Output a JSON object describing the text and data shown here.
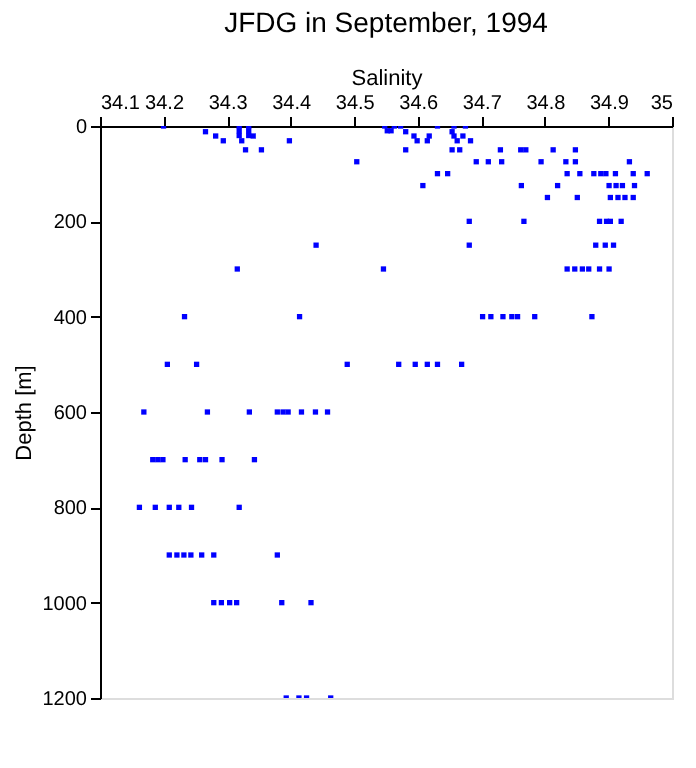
{
  "chart_data": {
    "type": "scatter",
    "title": "JFDG in September, 1994",
    "xlabel": "Salinity",
    "ylabel": "Depth [m]",
    "xlim": [
      34.1,
      35
    ],
    "xticks": [
      34.1,
      34.2,
      34.3,
      34.4,
      34.5,
      34.6,
      34.7,
      34.8,
      34.9,
      35
    ],
    "ylim": [
      1200,
      0
    ],
    "yticks": [
      0,
      200,
      400,
      600,
      800,
      1000,
      1200
    ],
    "grid": false,
    "marker": "square",
    "legend": false,
    "series": [
      {
        "color": "#0000ff",
        "x": [
          34.2,
          34.266,
          34.282,
          34.294,
          34.319,
          34.319,
          34.319,
          34.323,
          34.329,
          34.334,
          34.334,
          34.334,
          34.341,
          34.354,
          34.398,
          34.504,
          34.548,
          34.552,
          34.44,
          34.316,
          34.546,
          34.233,
          34.414,
          34.206,
          34.252,
          34.489,
          34.563,
          34.573,
          34.558,
          34.581,
          34.594,
          34.599,
          34.615,
          34.618,
          34.631,
          34.657,
          34.675,
          34.654,
          34.657,
          34.662,
          34.671,
          34.683,
          34.581,
          34.654,
          34.666,
          34.73,
          34.762,
          34.77,
          34.813,
          34.848,
          34.692,
          34.711,
          34.732,
          34.794,
          34.833,
          34.848,
          34.933,
          34.631,
          34.647,
          34.835,
          34.855,
          34.877,
          34.888,
          34.896,
          34.911,
          34.939,
          34.961,
          34.608,
          34.763,
          34.82,
          34.901,
          34.912,
          34.922,
          34.941,
          34.804,
          34.851,
          34.903,
          34.915,
          34.926,
          34.939,
          34.681,
          34.767,
          34.886,
          34.897,
          34.903,
          34.92,
          34.681,
          34.88,
          34.895,
          34.908,
          34.835,
          34.847,
          34.859,
          34.869,
          34.886,
          34.901,
          34.702,
          34.715,
          34.734,
          34.748,
          34.757,
          34.784,
          34.874,
          34.57,
          34.596,
          34.615,
          34.631,
          34.669,
          34.169,
          34.269,
          34.335,
          34.379,
          34.388,
          34.396,
          34.417,
          34.439,
          34.458,
          34.183,
          34.191,
          34.199,
          34.234,
          34.257,
          34.266,
          34.292,
          34.343,
          34.162,
          34.187,
          34.209,
          34.224,
          34.244,
          34.319,
          34.209,
          34.221,
          34.232,
          34.243,
          34.26,
          34.279,
          34.379,
          34.279,
          34.291,
          34.304,
          34.315,
          34.386,
          34.432,
          34.393,
          34.413,
          34.425,
          34.463
        ],
        "values": [
          0,
          12,
          21,
          31,
          0,
          10,
          20,
          31,
          50,
          0,
          10,
          20,
          21,
          50,
          31,
          75,
          0,
          10,
          250,
          300,
          300,
          400,
          400,
          500,
          500,
          500,
          0,
          0,
          10,
          12,
          21,
          31,
          31,
          21,
          0,
          0,
          0,
          12,
          21,
          31,
          21,
          31,
          50,
          50,
          50,
          50,
          50,
          50,
          50,
          50,
          75,
          75,
          75,
          75,
          75,
          75,
          75,
          100,
          100,
          100,
          100,
          100,
          100,
          100,
          100,
          100,
          100,
          125,
          125,
          125,
          125,
          125,
          125,
          125,
          150,
          150,
          150,
          150,
          150,
          150,
          200,
          200,
          200,
          200,
          200,
          200,
          250,
          250,
          250,
          250,
          300,
          300,
          300,
          300,
          300,
          300,
          400,
          400,
          400,
          400,
          400,
          400,
          400,
          500,
          500,
          500,
          500,
          500,
          600,
          600,
          600,
          600,
          600,
          600,
          600,
          600,
          600,
          700,
          700,
          700,
          700,
          700,
          700,
          700,
          700,
          800,
          800,
          800,
          800,
          800,
          800,
          900,
          900,
          900,
          900,
          900,
          900,
          900,
          1000,
          1000,
          1000,
          1000,
          1000,
          1000,
          1200,
          1200,
          1200,
          1200
        ]
      }
    ]
  }
}
